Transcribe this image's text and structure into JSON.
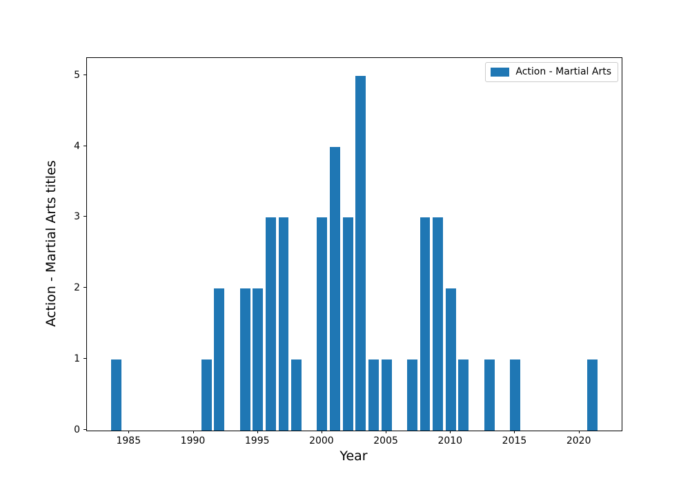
{
  "chart_data": {
    "type": "bar",
    "title": "",
    "xlabel": "Year",
    "ylabel": "Action - Martial Arts titles",
    "legend": {
      "label": "Action - Martial Arts",
      "position": "upper right"
    },
    "bar_color": "#1f77b4",
    "spine_color": "#000000",
    "legend_border_color": "#cccccc",
    "x": [
      1984,
      1991,
      1992,
      1994,
      1995,
      1996,
      1997,
      1998,
      2000,
      2001,
      2002,
      2003,
      2004,
      2005,
      2007,
      2008,
      2009,
      2010,
      2011,
      2013,
      2015,
      2021
    ],
    "values": [
      1,
      1,
      2,
      2,
      2,
      3,
      3,
      1,
      3,
      4,
      3,
      5,
      1,
      1,
      1,
      3,
      3,
      2,
      1,
      1,
      1,
      1
    ],
    "bar_width_years": 0.8,
    "xlim": [
      1981.71,
      2023.29
    ],
    "ylim": [
      0,
      5.25
    ],
    "x_ticks": [
      1985,
      1990,
      1995,
      2000,
      2005,
      2010,
      2015,
      2020
    ],
    "y_ticks": [
      0,
      1,
      2,
      3,
      4,
      5
    ],
    "grid": false
  }
}
